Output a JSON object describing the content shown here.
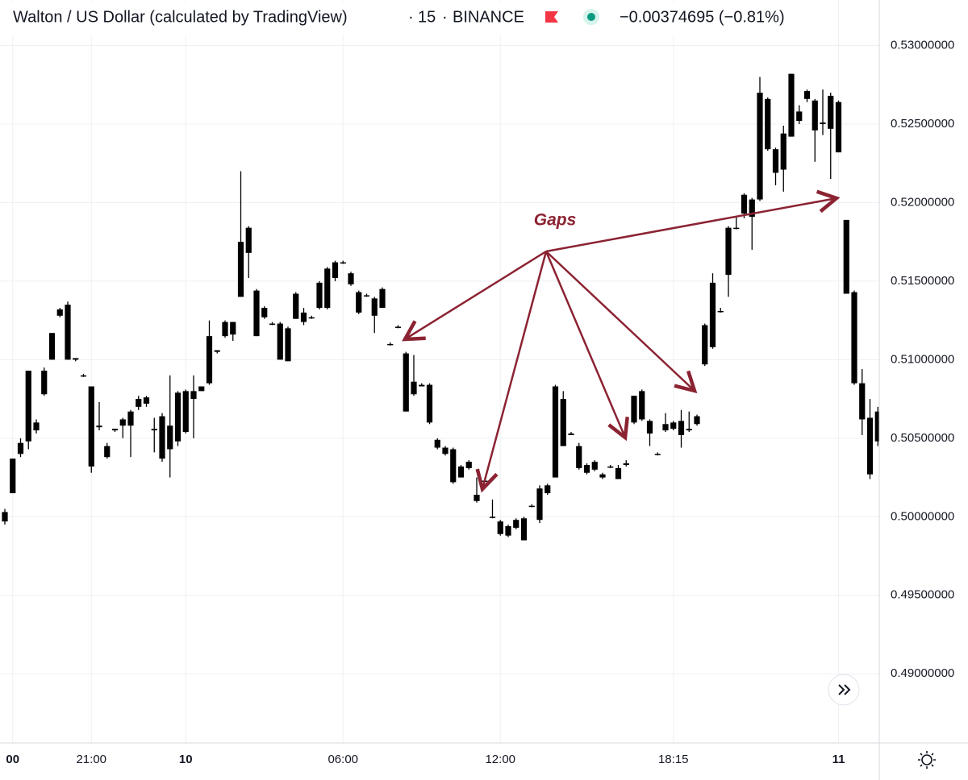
{
  "chart_data": {
    "type": "candlestick",
    "title": "Walton / US Dollar (calculated by TradingView)",
    "interval": "15",
    "exchange": "BINANCE",
    "change": "−0.00374695 (−0.81%)",
    "annotation": "Gaps",
    "color": "#000000",
    "categories": [
      null,
      "00",
      null,
      null,
      null,
      null,
      null,
      null,
      null,
      null,
      null,
      "21:00",
      null,
      null,
      null,
      null,
      null,
      null,
      null,
      null,
      null,
      null,
      null,
      "10",
      null,
      null,
      null,
      null,
      null,
      null,
      null,
      null,
      null,
      null,
      null,
      null,
      null,
      null,
      null,
      null,
      null,
      null,
      null,
      "06:00",
      null,
      null,
      null,
      null,
      null,
      null,
      null,
      null,
      null,
      null,
      null,
      null,
      null,
      null,
      null,
      null,
      null,
      null,
      null,
      "12:00",
      null,
      null,
      null,
      null,
      null,
      null,
      null,
      null,
      null,
      null,
      null,
      null,
      null,
      null,
      null,
      null,
      null,
      null,
      null,
      null,
      null,
      "18:15",
      null,
      null,
      null,
      null,
      null,
      null,
      null,
      null,
      null,
      null,
      null,
      null,
      null,
      null,
      null,
      null,
      null,
      null,
      null,
      null,
      "11",
      null,
      null,
      null,
      null,
      null
    ],
    "open": [
      0.5003,
      0.5015,
      0.504,
      0.5048,
      0.5055,
      0.5078,
      0.51,
      0.5128,
      0.5135,
      0.5101,
      0.509,
      0.5083,
      0.5057,
      0.5045,
      0.5055,
      0.5058,
      0.5058,
      0.507,
      0.5072,
      0.5055,
      0.5064,
      0.5043,
      0.5048,
      0.5054,
      0.5075,
      0.508,
      0.5085,
      0.5105,
      0.5115,
      0.5124,
      0.514,
      0.5184,
      0.5144,
      0.5133,
      0.5123,
      0.5123,
      0.512,
      0.5126,
      0.5124,
      0.5127,
      0.5133,
      0.5133,
      0.5152,
      0.5162,
      0.5155,
      0.5143,
      0.5141,
      0.5139,
      0.5133,
      0.511,
      0.5121,
      0.5104,
      0.5078,
      0.5084,
      0.5084,
      0.5049,
      0.5044,
      0.5043,
      0.5032,
      0.5031,
      0.5014,
      0.5023,
      0.5,
      0.4997,
      0.4994,
      0.4993,
      0.4999,
      0.5007,
      0.4998,
      0.5015,
      0.5025,
      0.5075,
      0.5053,
      0.5045,
      0.5033,
      0.503,
      0.5027,
      0.5032,
      0.5031,
      0.5034,
      0.506,
      0.5062,
      0.5061,
      0.504,
      0.5055,
      0.5056,
      0.5061,
      0.5055,
      0.5059,
      0.5097,
      0.5108,
      0.5131,
      0.5154,
      0.5184,
      0.5193,
      0.5202,
      0.5202,
      0.5266,
      0.5234,
      0.5221,
      0.5242,
      0.5252,
      0.5266,
      0.5265,
      0.525,
      0.5268,
      0.5264,
      0.5189,
      0.5143,
      0.5085,
      0.5063,
      0.5067
    ],
    "high": [
      0.5005,
      0.5037,
      0.505,
      0.5093,
      0.5062,
      0.5095,
      0.5117,
      0.5133,
      0.5137,
      0.5101,
      0.5091,
      0.5083,
      0.5073,
      0.5047,
      0.5056,
      0.5063,
      0.5068,
      0.5077,
      0.5077,
      0.5063,
      0.5066,
      0.509,
      0.508,
      0.5081,
      0.509,
      0.5083,
      0.5125,
      0.5106,
      0.5125,
      0.5124,
      0.522,
      0.5185,
      0.5145,
      0.5134,
      0.5124,
      0.5124,
      0.5121,
      0.5143,
      0.5133,
      0.5128,
      0.515,
      0.5159,
      0.5163,
      0.5163,
      0.5156,
      0.5144,
      0.5142,
      0.514,
      0.5146,
      0.5111,
      0.5122,
      0.5105,
      0.5103,
      0.5085,
      0.5085,
      0.505,
      0.5045,
      0.5044,
      0.5033,
      0.5036,
      0.5025,
      0.5024,
      0.5011,
      0.4998,
      0.4995,
      0.4999,
      0.5,
      0.5008,
      0.502,
      0.5021,
      0.5084,
      0.508,
      0.5054,
      0.5047,
      0.5034,
      0.5036,
      0.5028,
      0.5033,
      0.5033,
      0.5036,
      0.5077,
      0.5081,
      0.5062,
      0.5041,
      0.5066,
      0.5061,
      0.5068,
      0.5067,
      0.5065,
      0.5123,
      0.5155,
      0.5133,
      0.5185,
      0.5191,
      0.5206,
      0.5203,
      0.528,
      0.5267,
      0.5235,
      0.5249,
      0.5282,
      0.5262,
      0.5272,
      0.5266,
      0.5272,
      0.527,
      0.5265,
      0.5189,
      0.5144,
      0.5094,
      0.5075,
      0.507
    ],
    "low": [
      0.4995,
      0.5015,
      0.5038,
      0.5043,
      0.5053,
      0.5077,
      0.51,
      0.5127,
      0.51,
      0.5099,
      0.5089,
      0.5028,
      0.5055,
      0.5037,
      0.5054,
      0.505,
      0.5038,
      0.5068,
      0.507,
      0.5041,
      0.5035,
      0.5025,
      0.5045,
      0.5053,
      0.505,
      0.508,
      0.5084,
      0.5104,
      0.5114,
      0.5112,
      0.514,
      0.5152,
      0.5115,
      0.5126,
      0.5122,
      0.51,
      0.5099,
      0.5126,
      0.5122,
      0.5126,
      0.5132,
      0.5132,
      0.515,
      0.5161,
      0.5147,
      0.5129,
      0.514,
      0.5117,
      0.5133,
      0.5109,
      0.512,
      0.5067,
      0.5077,
      0.5083,
      0.5059,
      0.5043,
      0.5039,
      0.5021,
      0.5025,
      0.503,
      0.5009,
      0.5022,
      0.4999,
      0.4988,
      0.4987,
      0.4992,
      0.4985,
      0.5006,
      0.4996,
      0.5014,
      0.5025,
      0.5045,
      0.5052,
      0.503,
      0.5027,
      0.5029,
      0.5024,
      0.5031,
      0.5024,
      0.5032,
      0.5059,
      0.5061,
      0.5045,
      0.5039,
      0.5054,
      0.5055,
      0.5044,
      0.5054,
      0.5058,
      0.5096,
      0.5107,
      0.513,
      0.514,
      0.5183,
      0.519,
      0.517,
      0.5201,
      0.5233,
      0.5211,
      0.5207,
      0.5242,
      0.525,
      0.5264,
      0.5226,
      0.5243,
      0.5215,
      0.5232,
      0.5142,
      0.5084,
      0.5052,
      0.5024,
      0.5045
    ],
    "close": [
      0.4997,
      0.5037,
      0.5047,
      0.5093,
      0.506,
      0.5093,
      0.5117,
      0.5132,
      0.51,
      0.51,
      0.509,
      0.5032,
      0.5058,
      0.5038,
      0.5056,
      0.5062,
      0.5067,
      0.5075,
      0.5076,
      0.5056,
      0.5037,
      0.5058,
      0.5079,
      0.508,
      0.508,
      0.5083,
      0.5115,
      0.5106,
      0.5124,
      0.5116,
      0.5175,
      0.5168,
      0.5115,
      0.5127,
      0.5123,
      0.51,
      0.5099,
      0.5142,
      0.513,
      0.5127,
      0.5149,
      0.5158,
      0.5162,
      0.5162,
      0.5148,
      0.513,
      0.5141,
      0.5128,
      0.5145,
      0.511,
      0.5121,
      0.5067,
      0.5086,
      0.5083,
      0.506,
      0.5044,
      0.504,
      0.5022,
      0.5025,
      0.5035,
      0.501,
      0.5023,
      0.5,
      0.4989,
      0.4988,
      0.4998,
      0.4985,
      0.5007,
      0.5018,
      0.502,
      0.5083,
      0.5045,
      0.5052,
      0.5031,
      0.5028,
      0.5035,
      0.5025,
      0.5032,
      0.5024,
      0.5033,
      0.5077,
      0.508,
      0.5053,
      0.504,
      0.5059,
      0.506,
      0.5052,
      0.5056,
      0.5064,
      0.5122,
      0.5149,
      0.5131,
      0.5184,
      0.5184,
      0.5205,
      0.5191,
      0.527,
      0.5234,
      0.5219,
      0.5244,
      0.5282,
      0.5258,
      0.5271,
      0.5246,
      0.5251,
      0.5247,
      0.5232,
      0.5142,
      0.5085,
      0.5062,
      0.5027,
      0.5048
    ],
    "ylim": [
      0.4856,
      0.5329
    ],
    "yticks": [
      {
        "value": 0.53,
        "label": "0.53000000"
      },
      {
        "value": 0.525,
        "label": "0.52500000"
      },
      {
        "value": 0.52,
        "label": "0.52000000"
      },
      {
        "value": 0.515,
        "label": "0.51500000"
      },
      {
        "value": 0.51,
        "label": "0.51000000"
      },
      {
        "value": 0.505,
        "label": "0.50500000"
      },
      {
        "value": 0.5,
        "label": "0.50000000"
      },
      {
        "value": 0.495,
        "label": "0.49500000"
      },
      {
        "value": 0.49,
        "label": "0.49000000"
      }
    ],
    "grid": true
  }
}
